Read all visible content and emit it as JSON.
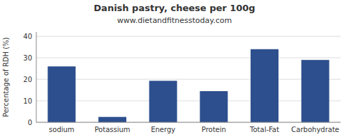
{
  "chart_data": {
    "type": "bar",
    "title": "Danish pastry, cheese per 100g",
    "subtitle": "www.dietandfitnesstoday.com",
    "categories": [
      "sodium",
      "Potassium",
      "Energy",
      "Protein",
      "Total-Fat",
      "Carbohydrate"
    ],
    "values": [
      26.0,
      2.5,
      19.3,
      14.5,
      34.0,
      29.0
    ],
    "color": "#2d4f8e",
    "ylabel": "Percentage of RDH (%)",
    "ylim": [
      0,
      42
    ],
    "yticks": [
      0,
      10,
      20,
      30,
      40
    ],
    "grid": true
  }
}
